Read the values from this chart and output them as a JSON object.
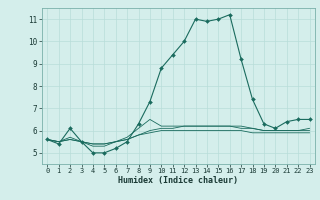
{
  "x_values": [
    0,
    1,
    2,
    3,
    4,
    5,
    6,
    7,
    8,
    9,
    10,
    11,
    12,
    13,
    14,
    15,
    16,
    17,
    18,
    19,
    20,
    21,
    22,
    23
  ],
  "series": [
    [
      5.6,
      5.4,
      6.1,
      5.5,
      5.0,
      5.0,
      5.2,
      5.5,
      6.3,
      7.3,
      8.8,
      9.4,
      10.0,
      11.0,
      10.9,
      11.0,
      11.2,
      9.2,
      7.4,
      6.3,
      6.1,
      6.4,
      6.5,
      6.5
    ],
    [
      5.6,
      5.5,
      5.7,
      5.5,
      5.3,
      5.3,
      5.5,
      5.7,
      6.1,
      6.5,
      6.2,
      6.2,
      6.2,
      6.2,
      6.2,
      6.2,
      6.2,
      6.2,
      6.1,
      6.0,
      6.0,
      6.0,
      6.0,
      6.1
    ],
    [
      5.6,
      5.5,
      5.6,
      5.5,
      5.4,
      5.4,
      5.5,
      5.6,
      5.8,
      6.0,
      6.1,
      6.1,
      6.2,
      6.2,
      6.2,
      6.2,
      6.2,
      6.1,
      6.1,
      6.0,
      6.0,
      6.0,
      6.0,
      6.0
    ],
    [
      5.6,
      5.5,
      5.6,
      5.5,
      5.4,
      5.4,
      5.5,
      5.6,
      5.8,
      5.9,
      6.0,
      6.0,
      6.0,
      6.0,
      6.0,
      6.0,
      6.0,
      6.0,
      5.9,
      5.9,
      5.9,
      5.9,
      5.9,
      5.9
    ]
  ],
  "line_color": "#1a6b5e",
  "bg_color": "#d4eeeb",
  "grid_color": "#b8ddd9",
  "xlabel": "Humidex (Indice chaleur)",
  "ylim": [
    4.5,
    11.5
  ],
  "xlim": [
    -0.5,
    23.5
  ],
  "yticks": [
    5,
    6,
    7,
    8,
    9,
    10,
    11
  ],
  "xticks": [
    0,
    1,
    2,
    3,
    4,
    5,
    6,
    7,
    8,
    9,
    10,
    11,
    12,
    13,
    14,
    15,
    16,
    17,
    18,
    19,
    20,
    21,
    22,
    23
  ],
  "font_size_ticks": 5.0,
  "font_size_xlabel": 6.0
}
